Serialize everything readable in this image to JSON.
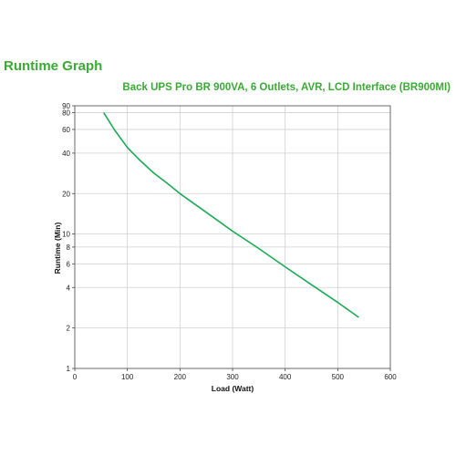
{
  "header": {
    "title": "Runtime Graph",
    "subtitle": "Back UPS Pro BR 900VA, 6 Outlets, AVR, LCD Interface (BR900MI)"
  },
  "colors": {
    "title": "#3aaa35",
    "line": "#1aaa55",
    "grid": "#d0d0d0",
    "axis": "#444444"
  },
  "chart_data": {
    "type": "line",
    "title": "Back UPS Pro BR 900VA, 6 Outlets, AVR, LCD Interface (BR900MI)",
    "xlabel": "Load (Watt)",
    "ylabel": "Runtime (Min)",
    "xlim": [
      0,
      600
    ],
    "ylim": [
      1,
      90
    ],
    "yscale": "log",
    "grid": true,
    "x_ticks": [
      0,
      100,
      200,
      300,
      400,
      500,
      600
    ],
    "y_ticks": [
      1,
      2,
      4,
      6,
      8,
      10,
      20,
      40,
      60,
      80,
      90
    ],
    "series": [
      {
        "x": [
          55,
          75,
          100,
          125,
          150,
          175,
          200,
          250,
          300,
          350,
          400,
          450,
          500,
          540
        ],
        "y": [
          80,
          60,
          44,
          35,
          28.5,
          24,
          20,
          14.5,
          10.5,
          7.8,
          5.7,
          4.2,
          3.1,
          2.4
        ]
      }
    ]
  }
}
